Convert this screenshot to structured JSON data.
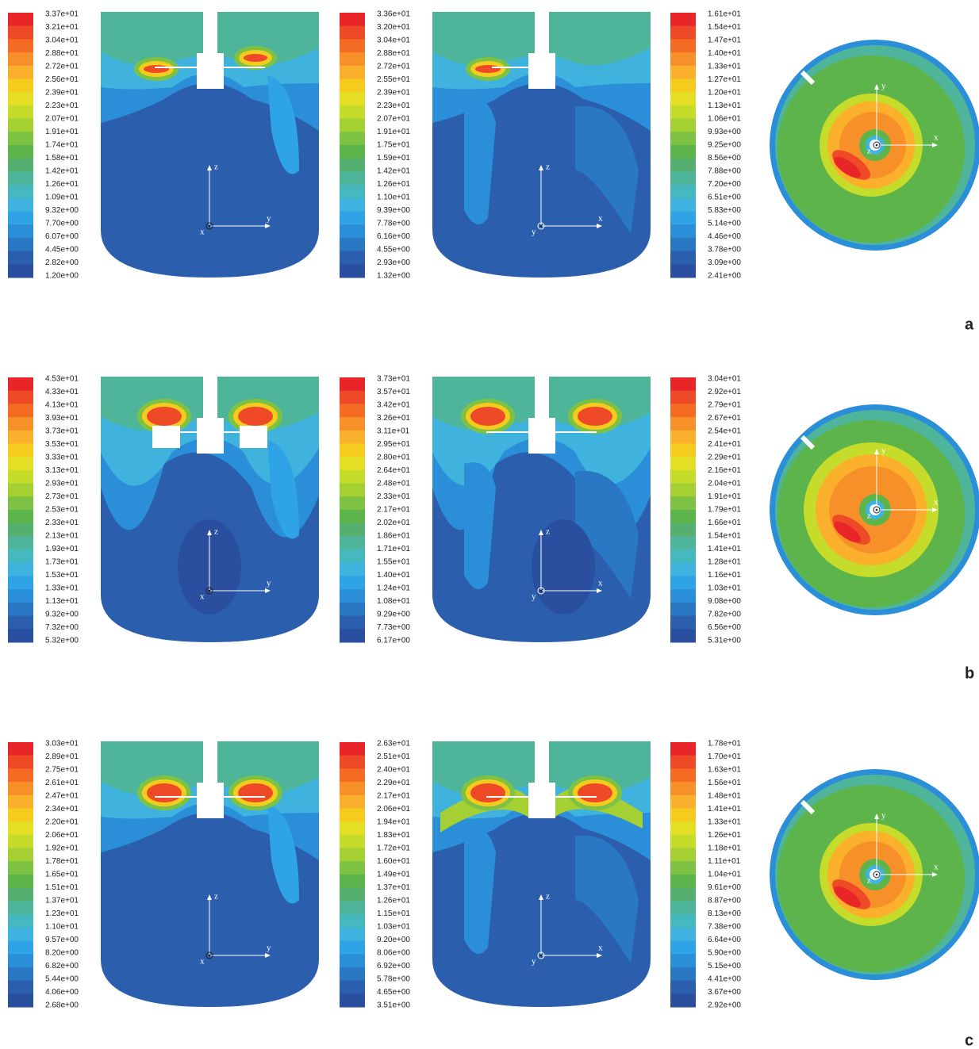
{
  "colormap": [
    "#e8262a",
    "#ef4a28",
    "#f46c24",
    "#f8902a",
    "#fbb02b",
    "#f5cc1e",
    "#e4df25",
    "#c6dc2a",
    "#a4d033",
    "#7dc242",
    "#5cb44a",
    "#55b070",
    "#4fb59a",
    "#45b8c0",
    "#3fb3de",
    "#2ea4e6",
    "#2a8fd8",
    "#2a77c4",
    "#2b5fae",
    "#2a4f9e"
  ],
  "rows": [
    {
      "label": "a",
      "panels": [
        {
          "colorbar": [
            "3.37e+01",
            "3.21e+01",
            "3.04e+01",
            "2.88e+01",
            "2.72e+01",
            "2.56e+01",
            "2.39e+01",
            "2.23e+01",
            "2.07e+01",
            "1.91e+01",
            "1.74e+01",
            "1.58e+01",
            "1.42e+01",
            "1.26e+01",
            "1.09e+01",
            "9.32e+00",
            "7.70e+00",
            "6.07e+00",
            "4.45e+00",
            "2.82e+00",
            "1.20e+00"
          ],
          "axes": [
            "z",
            "y",
            "x"
          ]
        },
        {
          "colorbar": [
            "3.36e+01",
            "3.20e+01",
            "3.04e+01",
            "2.88e+01",
            "2.72e+01",
            "2.55e+01",
            "2.39e+01",
            "2.23e+01",
            "2.07e+01",
            "1.91e+01",
            "1.75e+01",
            "1.59e+01",
            "1.42e+01",
            "1.26e+01",
            "1.10e+01",
            "9.39e+00",
            "7.78e+00",
            "6.16e+00",
            "4.55e+00",
            "2.93e+00",
            "1.32e+00"
          ],
          "axes": [
            "z",
            "x",
            "y"
          ]
        },
        {
          "colorbar": [
            "1.61e+01",
            "1.54e+01",
            "1.47e+01",
            "1.40e+01",
            "1.33e+01",
            "1.27e+01",
            "1.20e+01",
            "1.13e+01",
            "1.06e+01",
            "9.93e+00",
            "9.25e+00",
            "8.56e+00",
            "7.88e+00",
            "7.20e+00",
            "6.51e+00",
            "5.83e+00",
            "5.14e+00",
            "4.46e+00",
            "3.78e+00",
            "3.09e+00",
            "2.41e+00"
          ],
          "axes": [
            "y",
            "x",
            "z"
          ]
        }
      ]
    },
    {
      "label": "b",
      "panels": [
        {
          "colorbar": [
            "4.53e+01",
            "4.33e+01",
            "4.13e+01",
            "3.93e+01",
            "3.73e+01",
            "3.53e+01",
            "3.33e+01",
            "3.13e+01",
            "2.93e+01",
            "2.73e+01",
            "2.53e+01",
            "2.33e+01",
            "2.13e+01",
            "1.93e+01",
            "1.73e+01",
            "1.53e+01",
            "1.33e+01",
            "1.13e+01",
            "9.32e+00",
            "7.32e+00",
            "5.32e+00"
          ],
          "axes": [
            "z",
            "y",
            "x"
          ]
        },
        {
          "colorbar": [
            "3.73e+01",
            "3.57e+01",
            "3.42e+01",
            "3.26e+01",
            "3.11e+01",
            "2.95e+01",
            "2.80e+01",
            "2.64e+01",
            "2.48e+01",
            "2.33e+01",
            "2.17e+01",
            "2.02e+01",
            "1.86e+01",
            "1.71e+01",
            "1.55e+01",
            "1.40e+01",
            "1.24e+01",
            "1.08e+01",
            "9.29e+00",
            "7.73e+00",
            "6.17e+00"
          ],
          "axes": [
            "z",
            "x",
            "y"
          ]
        },
        {
          "colorbar": [
            "3.04e+01",
            "2.92e+01",
            "2.79e+01",
            "2.67e+01",
            "2.54e+01",
            "2.41e+01",
            "2.29e+01",
            "2.16e+01",
            "2.04e+01",
            "1.91e+01",
            "1.79e+01",
            "1.66e+01",
            "1.54e+01",
            "1.41e+01",
            "1.28e+01",
            "1.16e+01",
            "1.03e+01",
            "9.08e+00",
            "7.82e+00",
            "6.56e+00",
            "5.31e+00"
          ],
          "axes": [
            "y",
            "x",
            "z"
          ]
        }
      ]
    },
    {
      "label": "c",
      "panels": [
        {
          "colorbar": [
            "3.03e+01",
            "2.89e+01",
            "2.75e+01",
            "2.61e+01",
            "2.47e+01",
            "2.34e+01",
            "2.20e+01",
            "2.06e+01",
            "1.92e+01",
            "1.78e+01",
            "1.65e+01",
            "1.51e+01",
            "1.37e+01",
            "1.23e+01",
            "1.10e+01",
            "9.57e+00",
            "8.20e+00",
            "6.82e+00",
            "5.44e+00",
            "4.06e+00",
            "2.68e+00"
          ],
          "axes": [
            "z",
            "y",
            "x"
          ]
        },
        {
          "colorbar": [
            "2.63e+01",
            "2.51e+01",
            "2.40e+01",
            "2.29e+01",
            "2.17e+01",
            "2.06e+01",
            "1.94e+01",
            "1.83e+01",
            "1.72e+01",
            "1.60e+01",
            "1.49e+01",
            "1.37e+01",
            "1.26e+01",
            "1.15e+01",
            "1.03e+01",
            "9.20e+00",
            "8.06e+00",
            "6.92e+00",
            "5.78e+00",
            "4.65e+00",
            "3.51e+00"
          ],
          "axes": [
            "z",
            "x",
            "y"
          ]
        },
        {
          "colorbar": [
            "1.78e+01",
            "1.70e+01",
            "1.63e+01",
            "1.56e+01",
            "1.48e+01",
            "1.41e+01",
            "1.33e+01",
            "1.26e+01",
            "1.18e+01",
            "1.11e+01",
            "1.04e+01",
            "9.61e+00",
            "8.87e+00",
            "8.13e+00",
            "7.38e+00",
            "6.64e+00",
            "5.90e+00",
            "5.15e+00",
            "4.41e+00",
            "3.67e+00",
            "2.92e+00"
          ],
          "axes": [
            "y",
            "x",
            "z"
          ]
        }
      ]
    }
  ]
}
